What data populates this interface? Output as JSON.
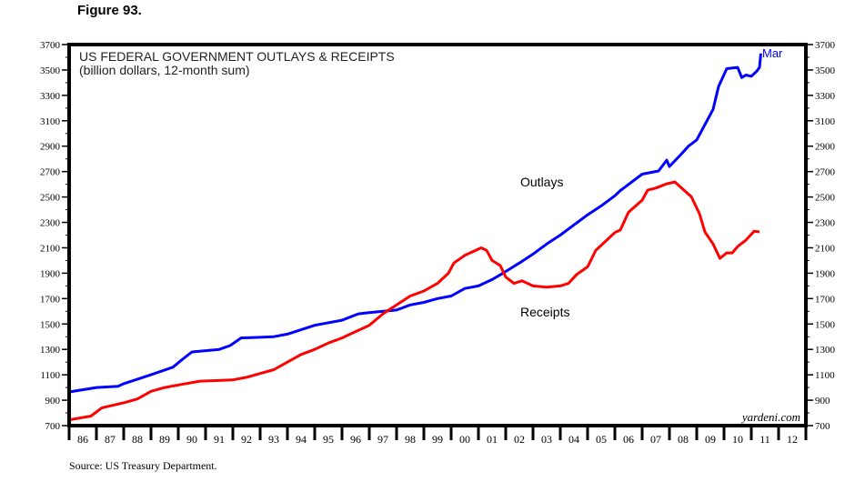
{
  "figure_label": "Figure 93.",
  "source": "Source: US Treasury Department.",
  "watermark": "yardeni.com",
  "chart_data": {
    "type": "line",
    "title": "US FEDERAL GOVERNMENT OUTLAYS & RECEIPTS",
    "subtitle": "(billion dollars, 12-month sum)",
    "ylim": [
      700,
      3700
    ],
    "yticks": [
      700,
      900,
      1100,
      1300,
      1500,
      1700,
      1900,
      2100,
      2300,
      2500,
      2700,
      2900,
      3100,
      3300,
      3500,
      3700
    ],
    "xlim": [
      1986,
      2013
    ],
    "xtick_labels": [
      "86",
      "87",
      "88",
      "89",
      "90",
      "91",
      "92",
      "93",
      "94",
      "95",
      "96",
      "97",
      "98",
      "99",
      "00",
      "01",
      "02",
      "03",
      "04",
      "05",
      "06",
      "07",
      "08",
      "09",
      "10",
      "11",
      "12"
    ],
    "end_annotation": "Mar",
    "grid": false,
    "series": [
      {
        "name": "Outlays",
        "color": "#0000ff",
        "x": [
          1986,
          1987,
          1987.8,
          1988,
          1989,
          1989.8,
          1990.2,
          1990.5,
          1991,
          1991.5,
          1991.9,
          1992.3,
          1993,
          1993.5,
          1994,
          1995,
          1996,
          1996.6,
          1997,
          1998,
          1998.5,
          1999,
          1999.5,
          2000,
          2000.5,
          2001,
          2001.5,
          2001.9,
          2002.5,
          2003,
          2003.5,
          2004,
          2004.5,
          2005,
          2005.5,
          2006,
          2006.2,
          2007,
          2007.6,
          2007.9,
          2008,
          2008.4,
          2008.7,
          2009,
          2009.3,
          2009.6,
          2009.8,
          2010.1,
          2010.5,
          2010.65,
          2010.8,
          2011,
          2011.2,
          2011.3,
          2011.35
        ],
        "y": [
          965,
          1000,
          1010,
          1030,
          1100,
          1160,
          1230,
          1280,
          1290,
          1300,
          1330,
          1390,
          1395,
          1400,
          1420,
          1490,
          1530,
          1580,
          1590,
          1610,
          1650,
          1670,
          1700,
          1720,
          1780,
          1800,
          1850,
          1900,
          1980,
          2050,
          2130,
          2200,
          2280,
          2360,
          2430,
          2510,
          2550,
          2680,
          2705,
          2790,
          2740,
          2830,
          2900,
          2950,
          3070,
          3190,
          3370,
          3510,
          3520,
          3440,
          3460,
          3450,
          3490,
          3520,
          3630
        ]
      },
      {
        "name": "Receipts",
        "color": "#ff0000",
        "x": [
          1986,
          1986.8,
          1987.2,
          1988,
          1988.5,
          1989,
          1989.5,
          1990,
          1990.8,
          1991.5,
          1992,
          1992.5,
          1993,
          1993.5,
          1994,
          1994.5,
          1995,
          1995.5,
          1996,
          1996.5,
          1997,
          1997.5,
          1998,
          1998.5,
          1999,
          1999.5,
          1999.9,
          2000.1,
          2000.5,
          2000.9,
          2001.1,
          2001.3,
          2001.5,
          2001.8,
          2002,
          2002.3,
          2002.6,
          2003,
          2003.5,
          2004,
          2004.3,
          2004.6,
          2005,
          2005.3,
          2005.7,
          2006,
          2006.2,
          2006.5,
          2007,
          2007.2,
          2007.5,
          2007.9,
          2008.2,
          2008.5,
          2008.8,
          2009.1,
          2009.3,
          2009.6,
          2009.85,
          2010.1,
          2010.3,
          2010.5,
          2010.8,
          2011.1,
          2011.3
        ],
        "y": [
          745,
          775,
          840,
          880,
          910,
          970,
          1000,
          1020,
          1050,
          1055,
          1060,
          1080,
          1110,
          1140,
          1200,
          1260,
          1300,
          1350,
          1390,
          1440,
          1490,
          1580,
          1650,
          1720,
          1760,
          1820,
          1900,
          1980,
          2040,
          2080,
          2100,
          2080,
          2000,
          1960,
          1870,
          1820,
          1840,
          1800,
          1790,
          1800,
          1820,
          1890,
          1950,
          2080,
          2160,
          2220,
          2240,
          2380,
          2475,
          2554,
          2570,
          2604,
          2618,
          2560,
          2503,
          2368,
          2225,
          2130,
          2017,
          2060,
          2060,
          2110,
          2160,
          2230,
          2225
        ]
      }
    ]
  }
}
